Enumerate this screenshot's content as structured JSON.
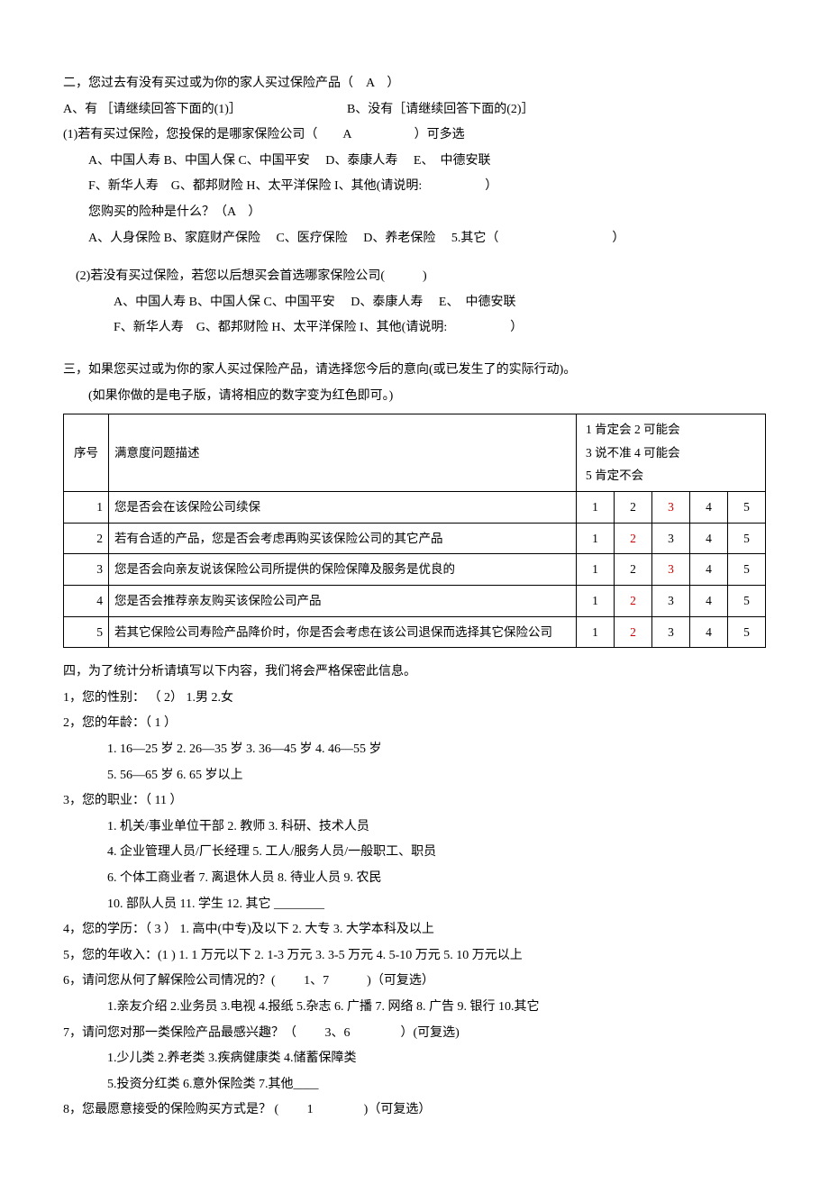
{
  "q2": {
    "title": "二，您过去有没有买过或为你的家人买过保险产品（　A　）",
    "optA": "A、有  ［请继续回答下面的(1)］",
    "optB": "B、没有［请继续回答下面的(2)］",
    "sub1_title": "(1)若有买过保险，您投保的是哪家保险公司（　　A　　　　　）可多选",
    "sub1_line1": "A、中国人寿  B、中国人保  C、中国平安　  D、泰康人寿　  E、　中德安联",
    "sub1_line2": "F、新华人寿　G、都邦财险  H、太平洋保险  I、其他(请说明:　　　　　）",
    "sub1_type_q": "您购买的险种是什么？（A　）",
    "sub1_type_opts": "A、人身保险  B、家庭财产保险　  C、医疗保险　  D、养老保险　   5.其它（　　　　　　　　　）",
    "sub2_title": "(2)若没有买过保险，若您以后想买会首选哪家保险公司(　　　)",
    "sub2_line1": "A、中国人寿  B、中国人保  C、中国平安　  D、泰康人寿　  E、　中德安联",
    "sub2_line2": "F、新华人寿　G、都邦财险  H、太平洋保险  I、其他(请说明:　　　　　）"
  },
  "q3": {
    "title": "三，如果您买过或为你的家人买过保险产品，请选择您今后的意向(或已发生了的实际行动)。",
    "note": "(如果你做的是电子版，请将相应的数字变为红色即可。)",
    "table": {
      "head_seq": "序号",
      "head_desc": "满意度问题描述",
      "head_scale": "1 肯定会  2 可能会\n3 说不准  4 可能会\n5 肯定不会",
      "rows": [
        {
          "seq": "1",
          "desc": "您是否会在该保险公司续保",
          "red_index": 2
        },
        {
          "seq": "2",
          "desc": "若有合适的产品，您是否会考虑再购买该保险公司的其它产品",
          "red_index": 1
        },
        {
          "seq": "3",
          "desc": "您是否会向亲友说该保险公司所提供的保险保障及服务是优良的",
          "red_index": 2
        },
        {
          "seq": "4",
          "desc": "您是否会推荐亲友购买该保险公司产品",
          "red_index": 1
        },
        {
          "seq": "5",
          "desc": "若其它保险公司寿险产品降价时，你是否会考虑在该公司退保而选择其它保险公司",
          "red_index": 1
        }
      ],
      "ratings": [
        "1",
        "2",
        "3",
        "4",
        "5"
      ]
    }
  },
  "q4": {
    "title": "四，为了统计分析请填写以下内容，我们将会严格保密此信息。",
    "q1": "1，您的性别：  （  2）    1.男   2.女",
    "q2": "2，您的年龄：（ 1 ）",
    "q2_opts1": "1. 16—25 岁          2. 26—35 岁          3. 36—45 岁          4. 46—55 岁",
    "q2_opts2": "5. 56—65 岁          6. 65 岁以上",
    "q3": "3，您的职业：（ 11 ）",
    "q3_opts1": "1. 机关/事业单位干部  2. 教师               3. 科研、技术人员",
    "q3_opts2": "4. 企业管理人员/厂长经理                  5. 工人/服务人员/一般职工、职员",
    "q3_opts3": "6. 个体工商业者       7. 离退休人员         8. 待业人员           9. 农民",
    "q3_opts4": "10. 部队人员          11. 学生              12. 其它 ________",
    "q4_line": "4，您的学历：（ 3 ）  1. 高中(中专)及以下  2. 大专  3. 大学本科及以上",
    "q5_line": "5，您的年收入：(1  ) 1. 1 万元以下 2. 1-3 万元  3. 3-5 万元  4. 5-10 万元   5. 10 万元以上",
    "q6": "6，请问您从何了解保险公司情况的？(　　 1、7　　　)（可复选）",
    "q6_opts": "1.亲友介绍  2.业务员  3.电视  4.报纸  5.杂志  6. 广播  7. 网络  8. 广告  9. 银行  10.其它",
    "q7": "7，请问您对那一类保险产品最感兴趣？（　　 3、6　　　　）(可复选)",
    "q7_opts1": "1.少儿类             2.养老类              3.疾病健康类          4.储蓄保障类",
    "q7_opts2": "5.投资分红类         6.意外保险类          7.其他____",
    "q8": "8，您最愿意接受的保险购买方式是？ (　　 1　　　　)（可复选）"
  }
}
